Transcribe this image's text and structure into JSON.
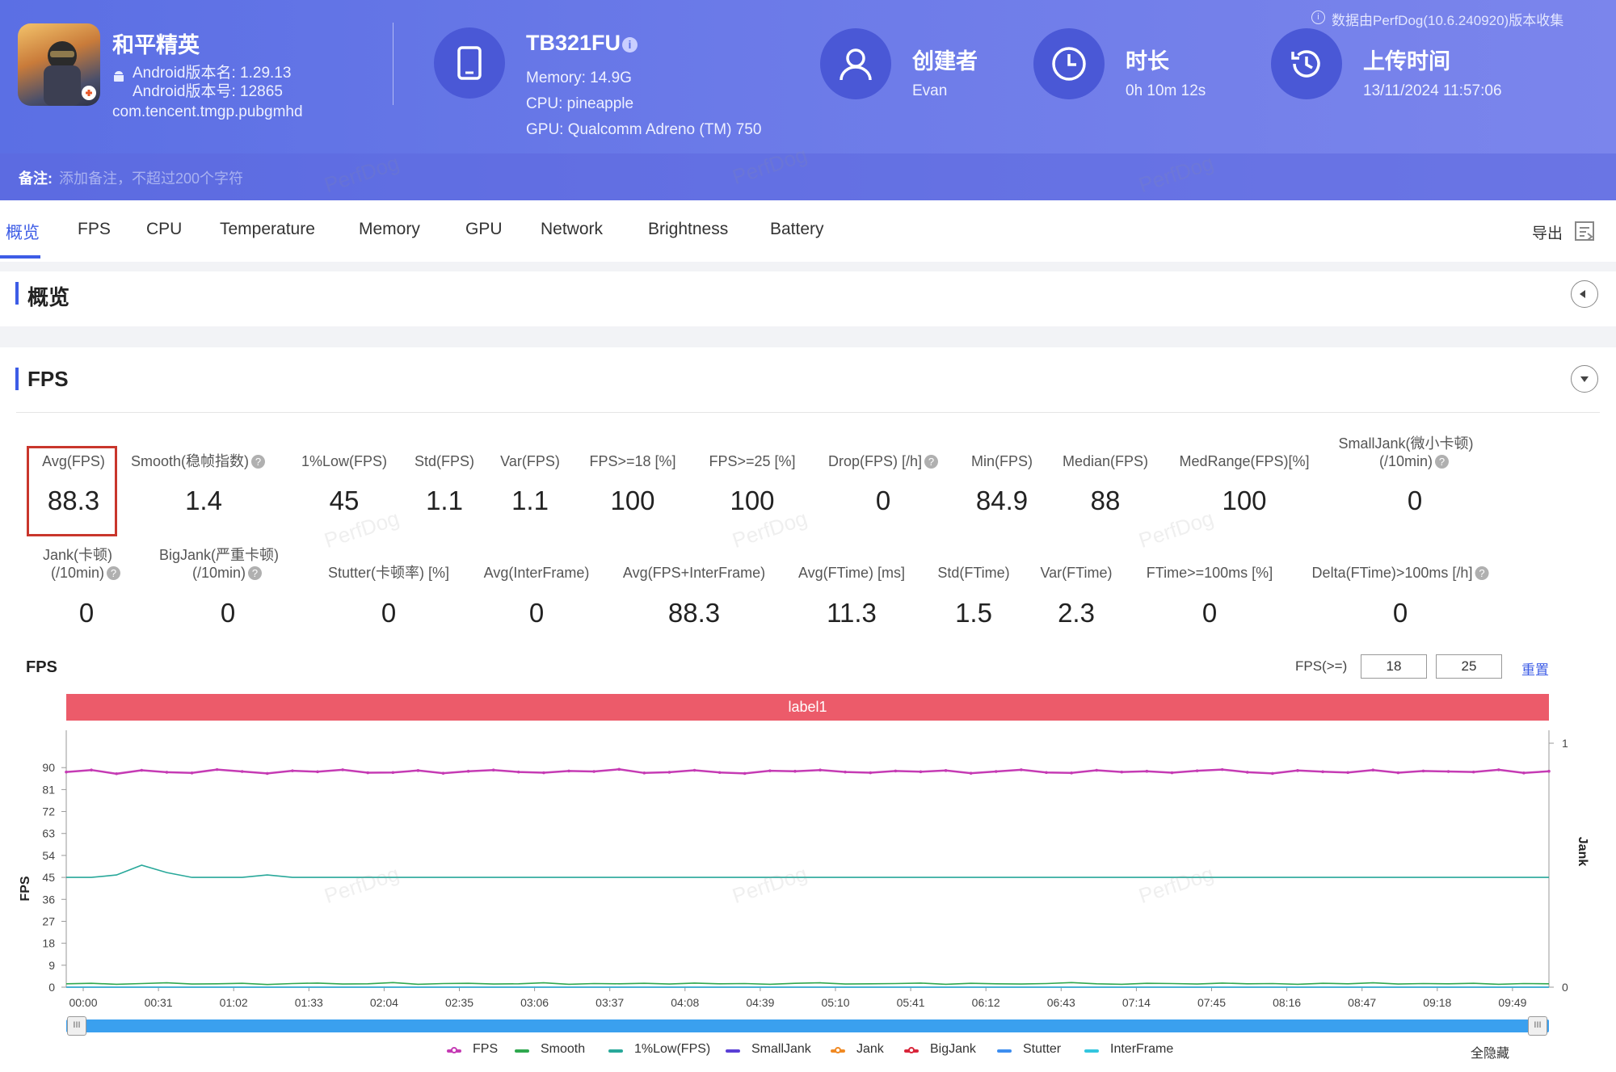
{
  "header": {
    "app_name": "和平精英",
    "android_version_name": "Android版本名: 1.29.13",
    "android_version_code": "Android版本号: 12865",
    "package": "com.tencent.tmgp.pubgmhd",
    "device_name": "TB321FU",
    "memory": "Memory: 14.9G",
    "cpu": "CPU: pineapple",
    "gpu": "GPU: Qualcomm Adreno (TM) 750",
    "creator_label": "创建者",
    "creator": "Evan",
    "duration_label": "时长",
    "duration": "0h 10m 12s",
    "upload_label": "上传时间",
    "upload_time": "13/11/2024 11:57:06",
    "source_note": "数据由PerfDog(10.6.240920)版本收集",
    "note_label": "备注:",
    "note_placeholder": "添加备注，不超过200个字符",
    "watermark": "PerfDog"
  },
  "tabs": [
    "概览",
    "FPS",
    "CPU",
    "Temperature",
    "Memory",
    "GPU",
    "Network",
    "Brightness",
    "Battery"
  ],
  "export_label": "导出",
  "overview_title": "概览",
  "fps_title": "FPS",
  "metrics_row1": [
    {
      "label": "Avg(FPS)",
      "value": "88.3"
    },
    {
      "label": "Smooth(稳帧指数)",
      "value": "1.4",
      "help": true
    },
    {
      "label": "1%Low(FPS)",
      "value": "45"
    },
    {
      "label": "Std(FPS)",
      "value": "1.1"
    },
    {
      "label": "Var(FPS)",
      "value": "1.1"
    },
    {
      "label": "FPS>=18 [%]",
      "value": "100"
    },
    {
      "label": "FPS>=25 [%]",
      "value": "100"
    },
    {
      "label": "Drop(FPS) [/h]",
      "value": "0",
      "help": true
    },
    {
      "label": "Min(FPS)",
      "value": "84.9"
    },
    {
      "label": "Median(FPS)",
      "value": "88"
    },
    {
      "label": "MedRange(FPS)[%]",
      "value": "100"
    },
    {
      "label": "SmallJank(微小卡顿)",
      "label2": "(/10min)",
      "value": "0",
      "help": true
    }
  ],
  "metrics_row2": [
    {
      "label": "Jank(卡顿)",
      "label2": "(/10min)",
      "value": "0",
      "help": true
    },
    {
      "label": "BigJank(严重卡顿)",
      "label2": "(/10min)",
      "value": "0",
      "help": true
    },
    {
      "label": "Stutter(卡顿率) [%]",
      "value": "0"
    },
    {
      "label": "Avg(InterFrame)",
      "value": "0"
    },
    {
      "label": "Avg(FPS+InterFrame)",
      "value": "88.3"
    },
    {
      "label": "Avg(FTime) [ms]",
      "value": "11.3"
    },
    {
      "label": "Std(FTime)",
      "value": "1.5"
    },
    {
      "label": "Var(FTime)",
      "value": "2.3"
    },
    {
      "label": "FTime>=100ms [%]",
      "value": "0"
    },
    {
      "label": "Delta(FTime)>100ms [/h]",
      "value": "0",
      "help": true
    }
  ],
  "chart_controls": {
    "chart_title": "FPS",
    "threshold_label": "FPS(>=)",
    "threshold1": "18",
    "threshold2": "25",
    "reset_label": "重置",
    "band_label": "label1",
    "hide_all_label": "全隐藏"
  },
  "chart_data": {
    "type": "line",
    "ylabel": "FPS",
    "y2label": "Jank",
    "ylim": [
      0,
      100
    ],
    "yticks": [
      0,
      9,
      18,
      27,
      36,
      45,
      54,
      63,
      72,
      81,
      90
    ],
    "y2ticks": [
      0,
      1
    ],
    "xticks": [
      "00:00",
      "00:31",
      "01:02",
      "01:33",
      "02:04",
      "02:35",
      "03:06",
      "03:37",
      "04:08",
      "04:39",
      "05:10",
      "05:41",
      "06:12",
      "06:43",
      "07:14",
      "07:45",
      "08:16",
      "08:47",
      "09:18",
      "09:49"
    ],
    "legend_position": "bottom",
    "series": [
      {
        "name": "FPS",
        "color": "#c53bb4",
        "marker": "circle",
        "values": [
          88.2,
          89.0,
          87.5,
          88.9,
          88.1,
          87.8,
          89.2,
          88.4,
          87.6,
          88.7,
          88.3,
          89.1,
          87.9,
          88.0,
          88.8,
          87.7,
          88.5,
          89.0,
          88.2,
          87.9,
          88.6,
          88.4,
          89.3,
          87.8,
          88.1,
          88.9,
          88.0,
          87.6,
          88.7,
          88.5,
          89.0,
          88.2,
          87.9,
          88.6,
          88.3,
          88.8,
          87.7,
          88.4,
          89.1,
          88.0,
          87.8,
          88.9,
          88.2,
          88.5,
          87.9,
          88.7,
          89.2,
          88.1,
          87.6,
          88.8,
          88.3,
          88.0,
          89.0,
          87.9,
          88.6,
          88.4,
          88.2,
          89.1,
          87.8,
          88.5
        ]
      },
      {
        "name": "Smooth",
        "color": "#2fa84f",
        "values": [
          1.4,
          1.6,
          1.2,
          1.5,
          1.8,
          1.3,
          1.4,
          1.6,
          1.1,
          1.5,
          1.7,
          1.3,
          1.4,
          1.9,
          1.2,
          1.5,
          1.6,
          1.3,
          1.4,
          1.8,
          1.2,
          1.5,
          1.4,
          1.6,
          1.3,
          1.7,
          1.4,
          1.5,
          1.2,
          1.6,
          1.8,
          1.3,
          1.4,
          1.5,
          1.7,
          1.2,
          1.6,
          1.4,
          1.3,
          1.5,
          1.9,
          1.4,
          1.2,
          1.6,
          1.5,
          1.3,
          1.7,
          1.4,
          1.5,
          1.2,
          1.6,
          1.4,
          1.8,
          1.3,
          1.5,
          1.4,
          1.6,
          1.2,
          1.5,
          1.4
        ]
      },
      {
        "name": "1%Low(FPS)",
        "color": "#28a89a",
        "values": [
          45,
          45,
          46,
          50,
          47,
          45,
          45,
          45,
          46,
          45,
          45,
          45,
          45,
          45,
          45,
          45,
          45,
          45,
          45,
          45,
          45,
          45,
          45,
          45,
          45,
          45,
          45,
          45,
          45,
          45,
          45,
          45,
          45,
          45,
          45,
          45,
          45,
          45,
          45,
          45,
          45,
          45,
          45,
          45,
          45,
          45,
          45,
          45,
          45,
          45,
          45,
          45,
          45,
          45,
          45,
          45,
          45,
          45,
          45,
          45
        ]
      },
      {
        "name": "SmallJank",
        "color": "#5a3fd6",
        "values": [
          0,
          0,
          0,
          0,
          0,
          0,
          0,
          0,
          0,
          0
        ]
      },
      {
        "name": "Jank",
        "color": "#f08a24",
        "values": [
          0,
          0,
          0,
          0,
          0,
          0,
          0,
          0,
          0,
          0
        ]
      },
      {
        "name": "BigJank",
        "color": "#d9253a",
        "values": [
          0,
          0,
          0,
          0,
          0,
          0,
          0,
          0,
          0,
          0
        ]
      },
      {
        "name": "Stutter",
        "color": "#3d8ef0",
        "values": [
          0,
          0,
          0,
          0,
          0,
          0,
          0,
          0,
          0,
          0
        ]
      },
      {
        "name": "InterFrame",
        "color": "#33c6df",
        "values": [
          0,
          0,
          0,
          0,
          0,
          0,
          0,
          0,
          0,
          0
        ]
      }
    ]
  }
}
